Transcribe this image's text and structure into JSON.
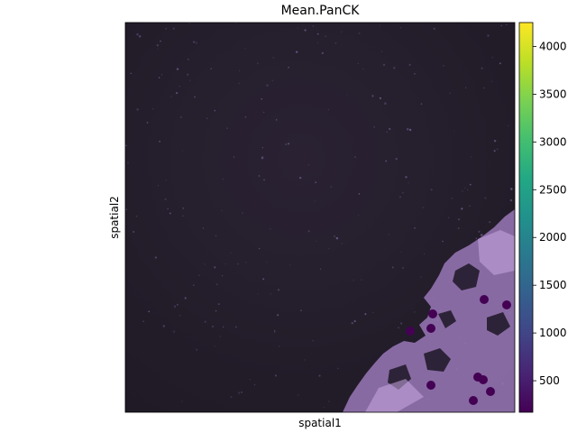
{
  "chart_data": {
    "type": "scatter",
    "title": "Mean.PanCK",
    "xlabel": "spatial1",
    "ylabel": "spatial2",
    "x_ticks_shown": false,
    "y_ticks_shown": false,
    "background": "fluorescence microscopy tissue image (dark field, purple-stained tissue in lower-right)",
    "colorbar": {
      "colormap": "viridis",
      "range": [
        170,
        4250
      ],
      "ticks": [
        500,
        1000,
        1500,
        2000,
        2500,
        3000,
        3500,
        4000
      ],
      "tick_labels": [
        "500",
        "1000",
        "1500",
        "2000",
        "2500",
        "3000",
        "3500",
        "4000"
      ]
    },
    "series": [
      {
        "marker_color": "#440154",
        "x": [
          455,
          478,
          480,
          478,
          537,
          562,
          530,
          536,
          544,
          525
        ],
        "y": [
          367,
          364,
          348,
          427,
          332,
          338,
          418,
          421,
          434,
          444
        ],
        "values": [
          230,
          250,
          240,
          220,
          260,
          240,
          230,
          220,
          210,
          200
        ]
      }
    ]
  }
}
